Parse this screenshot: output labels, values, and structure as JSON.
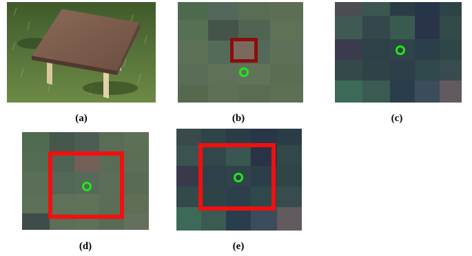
{
  "captions": {
    "a": "(a)",
    "b": "(b)",
    "c": "(c)",
    "d": "(d)",
    "e": "(e)"
  },
  "colors": {
    "target_marker": "#22e81b",
    "small_box": "#8b0e0e",
    "large_box": "#f20f0f",
    "table_top": "#7a5c4c",
    "grass": "#4f6b35"
  }
}
